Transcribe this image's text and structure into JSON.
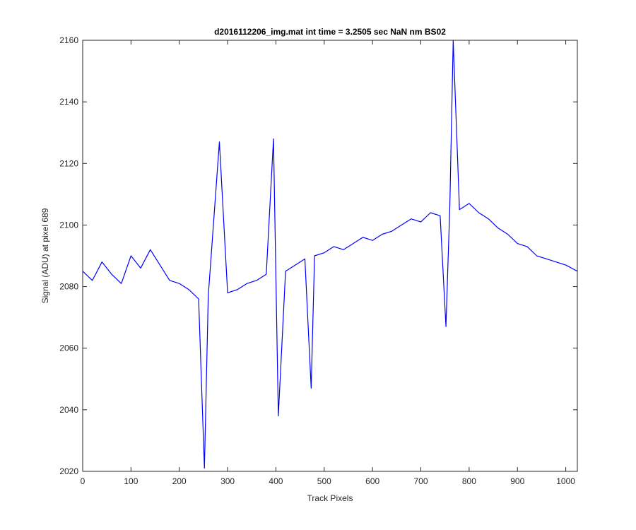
{
  "chart_data": {
    "type": "line",
    "title": "d2016112206_img.mat int time = 3.2505 sec  NaN nm BS02",
    "xlabel": "Track Pixels",
    "ylabel": "Signal (ADU) at pixel 689",
    "xlim": [
      0,
      1024
    ],
    "ylim": [
      2020,
      2160
    ],
    "xticks": [
      "0",
      "100",
      "200",
      "300",
      "400",
      "500",
      "600",
      "700",
      "800",
      "900",
      "1000"
    ],
    "yticks": [
      "2020",
      "2040",
      "2060",
      "2080",
      "2100",
      "2120",
      "2140",
      "2160"
    ],
    "grid": false,
    "legend": "none",
    "series_color": "#0000ff",
    "series": [
      {
        "x": [
          0,
          20,
          40,
          60,
          80,
          100,
          120,
          140,
          160,
          180,
          200,
          220,
          240,
          252,
          260,
          283,
          300,
          320,
          340,
          360,
          380,
          395,
          405,
          420,
          440,
          460,
          473,
          480,
          500,
          520,
          540,
          560,
          580,
          600,
          620,
          640,
          660,
          680,
          700,
          720,
          740,
          752,
          760,
          767,
          780,
          800,
          820,
          840,
          860,
          880,
          900,
          920,
          940,
          960,
          980,
          1000,
          1024
        ],
        "values": [
          2085,
          2082,
          2088,
          2084,
          2081,
          2090,
          2086,
          2092,
          2087,
          2082,
          2081,
          2079,
          2076,
          2021,
          2077,
          2127,
          2078,
          2079,
          2081,
          2082,
          2084,
          2128,
          2038,
          2085,
          2087,
          2089,
          2047,
          2090,
          2091,
          2093,
          2092,
          2094,
          2096,
          2095,
          2097,
          2098,
          2100,
          2102,
          2101,
          2104,
          2103,
          2067,
          2106,
          2160,
          2105,
          2107,
          2104,
          2102,
          2099,
          2097,
          2094,
          2093,
          2090,
          2089,
          2088,
          2087,
          2085
        ]
      }
    ]
  }
}
